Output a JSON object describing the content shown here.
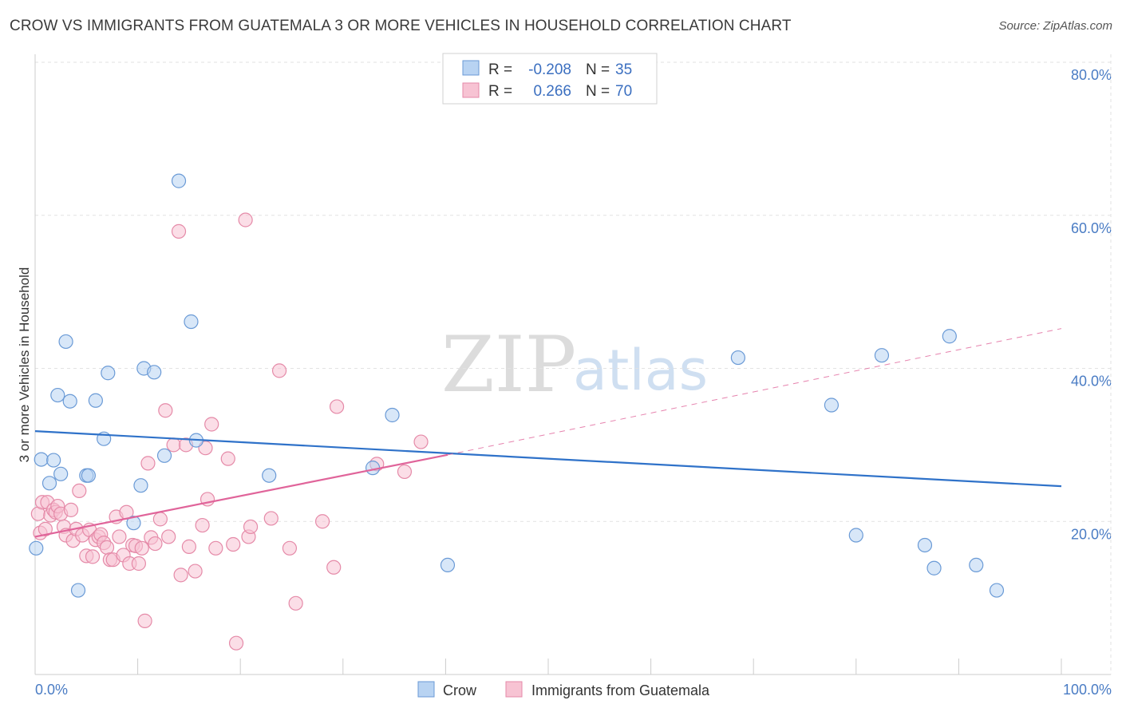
{
  "header": {
    "title": "CROW VS IMMIGRANTS FROM GUATEMALA 3 OR MORE VEHICLES IN HOUSEHOLD CORRELATION CHART",
    "source": "Source: ZipAtlas.com"
  },
  "watermark": {
    "zip": "ZIP",
    "atlas": "atlas"
  },
  "legend": {
    "rows": [
      {
        "r_label": "R =",
        "r_value": "-0.208",
        "n_label": "N =",
        "n_value": "35",
        "series": "crow"
      },
      {
        "r_label": "R =",
        "r_value": "0.266",
        "n_label": "N =",
        "n_value": "70",
        "series": "guatemala"
      }
    ]
  },
  "chart_data": {
    "type": "scatter",
    "title": "CROW VS IMMIGRANTS FROM GUATEMALA 3 OR MORE VEHICLES IN HOUSEHOLD CORRELATION CHART",
    "xlabel": "",
    "ylabel": "3 or more Vehicles in Household",
    "xlim": [
      0,
      100
    ],
    "ylim": [
      0,
      80
    ],
    "x_tick_labels": [
      "0.0%",
      "100.0%"
    ],
    "y_ticks": [
      20,
      40,
      60,
      80
    ],
    "y_tick_labels": [
      "20.0%",
      "40.0%",
      "60.0%",
      "80.0%"
    ],
    "colors": {
      "crow_fill": "#b8d3f2",
      "crow_stroke": "#6a9ad6",
      "crow_line": "#2f72c9",
      "guat_fill": "#f7c3d3",
      "guat_stroke": "#e58aa8",
      "guat_line": "#e0649a",
      "tick_text": "#4a7cc4"
    },
    "series": [
      {
        "name": "Crow",
        "trend": {
          "x0": 0,
          "y0": 31.8,
          "x1": 100,
          "y1": 24.6,
          "dashed_from": null
        },
        "points": [
          [
            0.1,
            16.5
          ],
          [
            0.6,
            28.1
          ],
          [
            1.4,
            25.0
          ],
          [
            1.8,
            28.0
          ],
          [
            2.2,
            36.5
          ],
          [
            2.5,
            26.2
          ],
          [
            3.0,
            43.5
          ],
          [
            3.4,
            35.7
          ],
          [
            4.2,
            11.0
          ],
          [
            5.0,
            26.0
          ],
          [
            5.2,
            26.0
          ],
          [
            5.9,
            35.8
          ],
          [
            6.7,
            30.8
          ],
          [
            7.1,
            39.4
          ],
          [
            9.6,
            19.8
          ],
          [
            10.3,
            24.7
          ],
          [
            10.6,
            40.0
          ],
          [
            11.6,
            39.5
          ],
          [
            12.6,
            28.6
          ],
          [
            14.0,
            64.5
          ],
          [
            15.2,
            46.1
          ],
          [
            15.7,
            30.6
          ],
          [
            22.8,
            26.0
          ],
          [
            32.9,
            27.0
          ],
          [
            34.8,
            33.9
          ],
          [
            40.2,
            14.3
          ],
          [
            68.5,
            41.4
          ],
          [
            77.6,
            35.2
          ],
          [
            80.0,
            18.2
          ],
          [
            82.5,
            41.7
          ],
          [
            86.7,
            16.9
          ],
          [
            87.6,
            13.9
          ],
          [
            89.1,
            44.2
          ],
          [
            91.7,
            14.3
          ],
          [
            93.7,
            11.0
          ]
        ]
      },
      {
        "name": "Immigrants from Guatemala",
        "trend": {
          "x0": 0,
          "y0": 18.0,
          "x1": 40.2,
          "y1": 28.7,
          "dash_x1": 100,
          "dash_y1": 45.2
        },
        "points": [
          [
            0.3,
            21.0
          ],
          [
            0.5,
            18.5
          ],
          [
            0.7,
            22.5
          ],
          [
            1.0,
            19.0
          ],
          [
            1.2,
            22.5
          ],
          [
            1.5,
            20.8
          ],
          [
            1.8,
            21.5
          ],
          [
            2.0,
            21.2
          ],
          [
            2.2,
            22.0
          ],
          [
            2.5,
            21.0
          ],
          [
            2.8,
            19.3
          ],
          [
            3.0,
            18.2
          ],
          [
            3.5,
            21.5
          ],
          [
            3.7,
            17.5
          ],
          [
            4.0,
            19.0
          ],
          [
            4.3,
            24.0
          ],
          [
            4.6,
            18.2
          ],
          [
            5.0,
            15.5
          ],
          [
            5.3,
            18.9
          ],
          [
            5.6,
            15.4
          ],
          [
            5.9,
            17.6
          ],
          [
            6.2,
            18.0
          ],
          [
            6.4,
            18.3
          ],
          [
            6.7,
            17.2
          ],
          [
            7.0,
            16.6
          ],
          [
            7.3,
            15.0
          ],
          [
            7.6,
            15.0
          ],
          [
            7.9,
            20.6
          ],
          [
            8.2,
            18.0
          ],
          [
            8.6,
            15.6
          ],
          [
            8.9,
            21.2
          ],
          [
            9.2,
            14.5
          ],
          [
            9.5,
            16.9
          ],
          [
            9.8,
            16.8
          ],
          [
            10.1,
            14.5
          ],
          [
            10.4,
            16.5
          ],
          [
            10.7,
            7.0
          ],
          [
            11.0,
            27.6
          ],
          [
            11.3,
            17.9
          ],
          [
            11.7,
            17.1
          ],
          [
            12.2,
            20.3
          ],
          [
            12.7,
            34.5
          ],
          [
            13.0,
            18.0
          ],
          [
            13.5,
            30.0
          ],
          [
            14.0,
            57.9
          ],
          [
            14.2,
            13.0
          ],
          [
            14.7,
            30.0
          ],
          [
            15.0,
            16.7
          ],
          [
            15.6,
            13.5
          ],
          [
            16.3,
            19.5
          ],
          [
            16.6,
            29.6
          ],
          [
            16.8,
            22.9
          ],
          [
            17.2,
            32.7
          ],
          [
            17.6,
            16.5
          ],
          [
            18.8,
            28.2
          ],
          [
            19.3,
            17.0
          ],
          [
            19.6,
            4.1
          ],
          [
            20.5,
            59.4
          ],
          [
            20.8,
            18.0
          ],
          [
            21.0,
            19.3
          ],
          [
            23.0,
            20.4
          ],
          [
            23.8,
            39.7
          ],
          [
            25.4,
            9.3
          ],
          [
            29.1,
            14.0
          ],
          [
            29.4,
            35.0
          ],
          [
            33.3,
            27.5
          ],
          [
            36.0,
            26.5
          ],
          [
            37.6,
            30.4
          ],
          [
            24.8,
            16.5
          ],
          [
            28.0,
            20.0
          ]
        ]
      }
    ]
  },
  "bottom_legend": {
    "items": [
      {
        "label": "Crow",
        "series": "crow"
      },
      {
        "label": "Immigrants from Guatemala",
        "series": "guatemala"
      }
    ]
  }
}
